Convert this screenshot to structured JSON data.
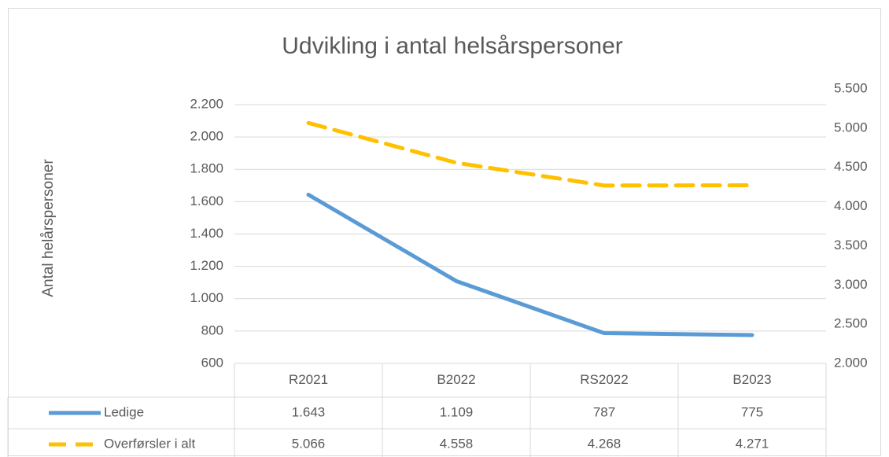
{
  "chart_data": {
    "type": "line",
    "title": "Udvikling i antal helsårspersoner",
    "y_label": "Antal helårspersoner",
    "categories": [
      "R2021",
      "B2022",
      "RS2022",
      "B2023"
    ],
    "series": [
      {
        "name": "Ledige",
        "color": "#5b9bd5",
        "style": "solid",
        "axis": "y",
        "values": [
          1643,
          1109,
          787,
          775
        ],
        "value_labels": [
          "1.643",
          "1.109",
          "787",
          "775"
        ]
      },
      {
        "name": "Overførsler i alt",
        "color": "#ffc000",
        "style": "dashed",
        "axis": "y2",
        "values": [
          5066,
          4558,
          4268,
          4271
        ],
        "value_labels": [
          "5.066",
          "4.558",
          "4.268",
          "4.271"
        ]
      }
    ],
    "ylim": [
      600,
      2200
    ],
    "yticks": [
      600,
      800,
      {
        "value": 1000,
        "label": "1.000"
      },
      {
        "value": 1200,
        "label": "1.200"
      },
      {
        "value": 1400,
        "label": "1.400"
      },
      {
        "value": 1600,
        "label": "1.600"
      },
      {
        "value": 1800,
        "label": "1.800"
      },
      {
        "value": 2000,
        "label": "2.000"
      },
      {
        "value": 2200,
        "label": "2.200"
      }
    ],
    "y2lim": [
      2000,
      5500
    ],
    "y2ticks": [
      {
        "value": 2000,
        "label": "2.000"
      },
      {
        "value": 2500,
        "label": "2.500"
      },
      {
        "value": 3000,
        "label": "3.000"
      },
      {
        "value": 3500,
        "label": "3.500"
      },
      {
        "value": 4000,
        "label": "4.000"
      },
      {
        "value": 4500,
        "label": "4.500"
      },
      {
        "value": 5000,
        "label": "5.000"
      },
      {
        "value": 5500,
        "label": "5.500"
      }
    ],
    "grid": true,
    "data_table": true
  }
}
